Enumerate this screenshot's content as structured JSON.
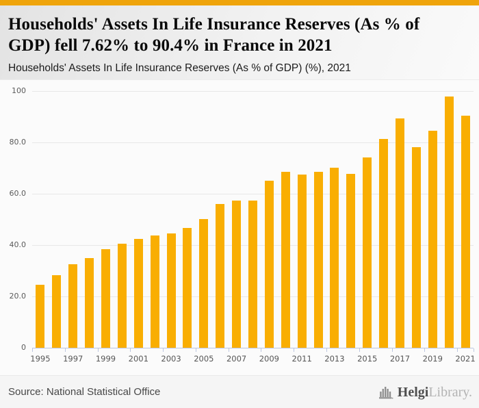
{
  "header": {
    "title": "Households' Assets In Life Insurance Reserves (As % of GDP) fell 7.62% to 90.4% in France in 2021",
    "subtitle": "Households' Assets In Life Insurance Reserves (As % of GDP) (%), 2021"
  },
  "chart_data": {
    "type": "bar",
    "title": "Households' Assets In Life Insurance Reserves (As % of GDP) fell 7.62% to 90.4% in France in 2021",
    "subtitle": "Households' Assets In Life Insurance Reserves (As % of GDP) (%), 2021",
    "xlabel": "",
    "ylabel": "",
    "ylim": [
      0,
      100
    ],
    "grid": true,
    "legend": false,
    "categories": [
      1995,
      1996,
      1997,
      1998,
      1999,
      2000,
      2001,
      2002,
      2003,
      2004,
      2005,
      2006,
      2007,
      2008,
      2009,
      2010,
      2011,
      2012,
      2013,
      2014,
      2015,
      2016,
      2017,
      2018,
      2019,
      2020,
      2021
    ],
    "values": [
      24.6,
      28.4,
      32.5,
      35.0,
      38.3,
      40.6,
      42.5,
      43.7,
      44.6,
      46.6,
      50.2,
      56.0,
      57.4,
      57.2,
      65.0,
      68.4,
      67.4,
      68.5,
      70.1,
      67.7,
      74.1,
      81.2,
      89.2,
      78.0,
      84.6,
      97.9,
      90.4
    ],
    "yticks": [
      {
        "value": 0,
        "label": "0"
      },
      {
        "value": 20,
        "label": "20.0"
      },
      {
        "value": 40,
        "label": "40.0"
      },
      {
        "value": 60,
        "label": "60.0"
      },
      {
        "value": 80,
        "label": "80.0"
      },
      {
        "value": 100,
        "label": "100"
      }
    ],
    "xtick_labels": [
      "1995",
      "1997",
      "1999",
      "2001",
      "2003",
      "2005",
      "2007",
      "2009",
      "2011",
      "2013",
      "2015",
      "2017",
      "2019",
      "2021"
    ]
  },
  "colors": {
    "topbar": "#efa40b",
    "bar": "#f9ae02",
    "grid": "#e8e8e8",
    "axis_line": "#bcc6e0",
    "axis_text": "#5a5a5a"
  },
  "footer": {
    "source": "Source: National Statistical Office",
    "logo": {
      "icon": "organ-pipes-chart-icon",
      "text_primary": "Helgi",
      "text_secondary": "Library."
    }
  }
}
